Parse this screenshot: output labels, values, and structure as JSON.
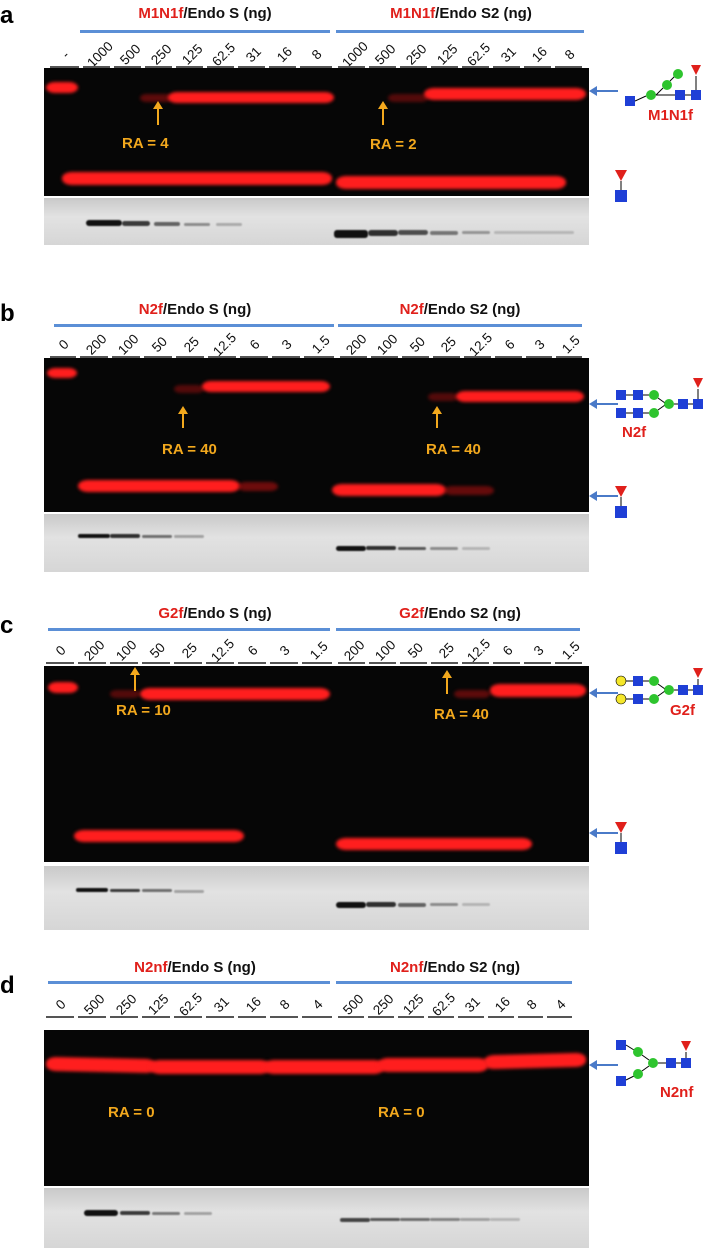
{
  "panels": [
    {
      "label": "a",
      "left": {
        "glycan": "M1N1f",
        "rest": "/Endo S (ng)"
      },
      "right": {
        "glycan": "M1N1f",
        "rest": "/Endo S2 (ng)"
      },
      "control_lane": "-",
      "left_lanes": [
        "1000",
        "500",
        "250",
        "125",
        "62.5",
        "31",
        "16",
        "8"
      ],
      "right_lanes": [
        "1000",
        "500",
        "250",
        "125",
        "62.5",
        "31",
        "16",
        "8"
      ],
      "ra_left": "RA = 4",
      "ra_right": "RA = 2",
      "substrate_name": "M1N1f"
    },
    {
      "label": "b",
      "left": {
        "glycan": "N2f",
        "rest": "/Endo S (ng)"
      },
      "right": {
        "glycan": "N2f",
        "rest": "/Endo S2 (ng)"
      },
      "control_lane": "0",
      "left_lanes": [
        "200",
        "100",
        "50",
        "25",
        "12.5",
        "6",
        "3",
        "1.5"
      ],
      "right_lanes": [
        "200",
        "100",
        "50",
        "25",
        "12.5",
        "6",
        "3",
        "1.5"
      ],
      "ra_left": "RA = 40",
      "ra_right": "RA = 40",
      "substrate_name": "N2f"
    },
    {
      "label": "c",
      "left": {
        "glycan": "G2f",
        "rest": "/Endo S (ng)"
      },
      "right": {
        "glycan": "G2f",
        "rest": "/Endo S2 (ng)"
      },
      "control_lane": "0",
      "left_lanes": [
        "200",
        "100",
        "50",
        "25",
        "12.5",
        "6",
        "3",
        "1.5"
      ],
      "right_lanes": [
        "200",
        "100",
        "50",
        "25",
        "12.5",
        "6",
        "3",
        "1.5"
      ],
      "ra_left": "RA = 10",
      "ra_right": "RA = 40",
      "substrate_name": "G2f"
    },
    {
      "label": "d",
      "left": {
        "glycan": "N2nf",
        "rest": "/Endo S (ng)"
      },
      "right": {
        "glycan": "N2nf",
        "rest": "/Endo S2 (ng)"
      },
      "control_lane": "0",
      "left_lanes": [
        "500",
        "250",
        "125",
        "62.5",
        "31",
        "16",
        "8",
        "4"
      ],
      "right_lanes": [
        "500",
        "250",
        "125",
        "62.5",
        "31",
        "16",
        "8",
        "4"
      ],
      "ra_left": "RA = 0",
      "ra_right": "RA = 0",
      "substrate_name": "N2nf"
    }
  ],
  "colors": {
    "glycan_label": "#e0201b",
    "ra_text": "#f2a81d",
    "header_line": "#5b8fd6",
    "band": "#ff1e1e",
    "gel_background": "#060606",
    "glcnac_square": "#1f3fd6",
    "mannose_circle": "#2ec42e",
    "galactose_circle": "#f5e72a",
    "fucose_triangle": "#e0201b"
  }
}
